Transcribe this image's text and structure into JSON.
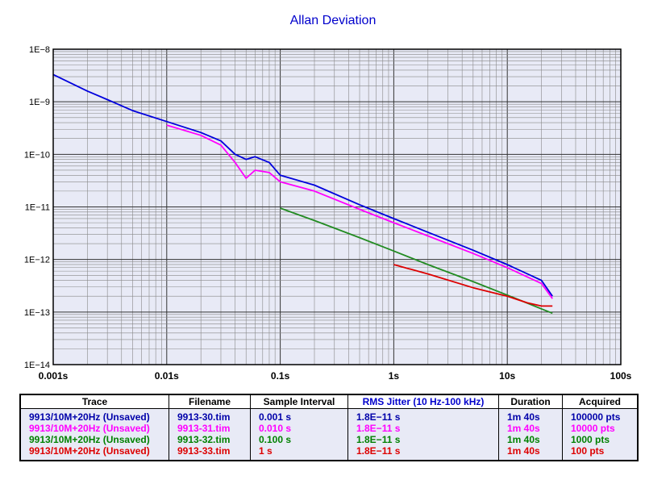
{
  "chart_data": {
    "type": "line",
    "title": "Allan Deviation",
    "x_scale": "log",
    "y_scale": "log",
    "xlim": [
      0.001,
      100
    ],
    "ylim": [
      1e-14,
      1e-08
    ],
    "grid": true,
    "x_ticks": [
      "0.001s",
      "0.01s",
      "0.1s",
      "1s",
      "10s",
      "100s"
    ],
    "y_ticks": [
      "1E−8",
      "1E−9",
      "1E−10",
      "1E−11",
      "1E−12",
      "1E−13",
      "1E−14"
    ],
    "series": [
      {
        "name": "9913/10M+20Hz (Unsaved)",
        "color": "#0000dd",
        "x": [
          0.001,
          0.002,
          0.003,
          0.005,
          0.01,
          0.02,
          0.03,
          0.04,
          0.05,
          0.06,
          0.08,
          0.1,
          0.2,
          0.5,
          1,
          2,
          5,
          10,
          20,
          25
        ],
        "y": [
          3.3e-09,
          1.6e-09,
          1.1e-09,
          6.8e-10,
          4.2e-10,
          2.6e-10,
          1.8e-10,
          1e-10,
          8e-11,
          9e-11,
          7e-11,
          4e-11,
          2.6e-11,
          1.1e-11,
          6e-12,
          3.3e-12,
          1.5e-12,
          8e-13,
          4e-13,
          2e-13
        ]
      },
      {
        "name": "9913/10M+20Hz (Unsaved)",
        "color": "#ff00ff",
        "x": [
          0.01,
          0.02,
          0.03,
          0.04,
          0.05,
          0.06,
          0.08,
          0.1,
          0.2,
          0.5,
          1,
          2,
          5,
          10,
          20,
          25
        ],
        "y": [
          3.6e-10,
          2.3e-10,
          1.5e-10,
          7e-11,
          3.5e-11,
          5e-11,
          4.5e-11,
          3e-11,
          2e-11,
          9e-12,
          5e-12,
          2.8e-12,
          1.3e-12,
          7e-13,
          3.5e-13,
          1.8e-13
        ]
      },
      {
        "name": "9913/10M+20Hz (Unsaved)",
        "color": "#228b22",
        "x": [
          0.1,
          0.2,
          0.5,
          1,
          2,
          5,
          10,
          20,
          25
        ],
        "y": [
          9.5e-12,
          5.5e-12,
          2.6e-12,
          1.45e-12,
          8e-13,
          3.8e-13,
          2.1e-13,
          1.15e-13,
          9.5e-14
        ]
      },
      {
        "name": "9913/10M+20Hz (Unsaved)",
        "color": "#dd0000",
        "x": [
          1,
          2,
          5,
          10,
          15,
          20,
          25
        ],
        "y": [
          8e-13,
          5.3e-13,
          2.9e-13,
          2e-13,
          1.5e-13,
          1.3e-13,
          1.3e-13
        ]
      }
    ]
  },
  "table": {
    "headers": [
      "Trace",
      "Filename",
      "Sample Interval",
      "RMS Jitter (10 Hz-100 kHz)",
      "Duration",
      "Acquired"
    ],
    "rows": [
      {
        "color": "#0000aa",
        "cells": [
          "9913/10M+20Hz (Unsaved)",
          "9913-30.tim",
          "0.001 s",
          "1.8E−11 s",
          "1m 40s",
          "100000 pts"
        ]
      },
      {
        "color": "#ff00ff",
        "cells": [
          "9913/10M+20Hz (Unsaved)",
          "9913-31.tim",
          "0.010 s",
          "1.8E−11 s",
          "1m 40s",
          "10000 pts"
        ]
      },
      {
        "color": "#008000",
        "cells": [
          "9913/10M+20Hz (Unsaved)",
          "9913-32.tim",
          "0.100 s",
          "1.8E−11 s",
          "1m 40s",
          "1000 pts"
        ]
      },
      {
        "color": "#dd0000",
        "cells": [
          "9913/10M+20Hz (Unsaved)",
          "9913-33.tim",
          "1 s",
          "1.8E−11 s",
          "1m 40s",
          "100 pts"
        ]
      }
    ],
    "header_colors": [
      "#000000",
      "#000000",
      "#000000",
      "#0000cc",
      "#000000",
      "#000000"
    ]
  }
}
